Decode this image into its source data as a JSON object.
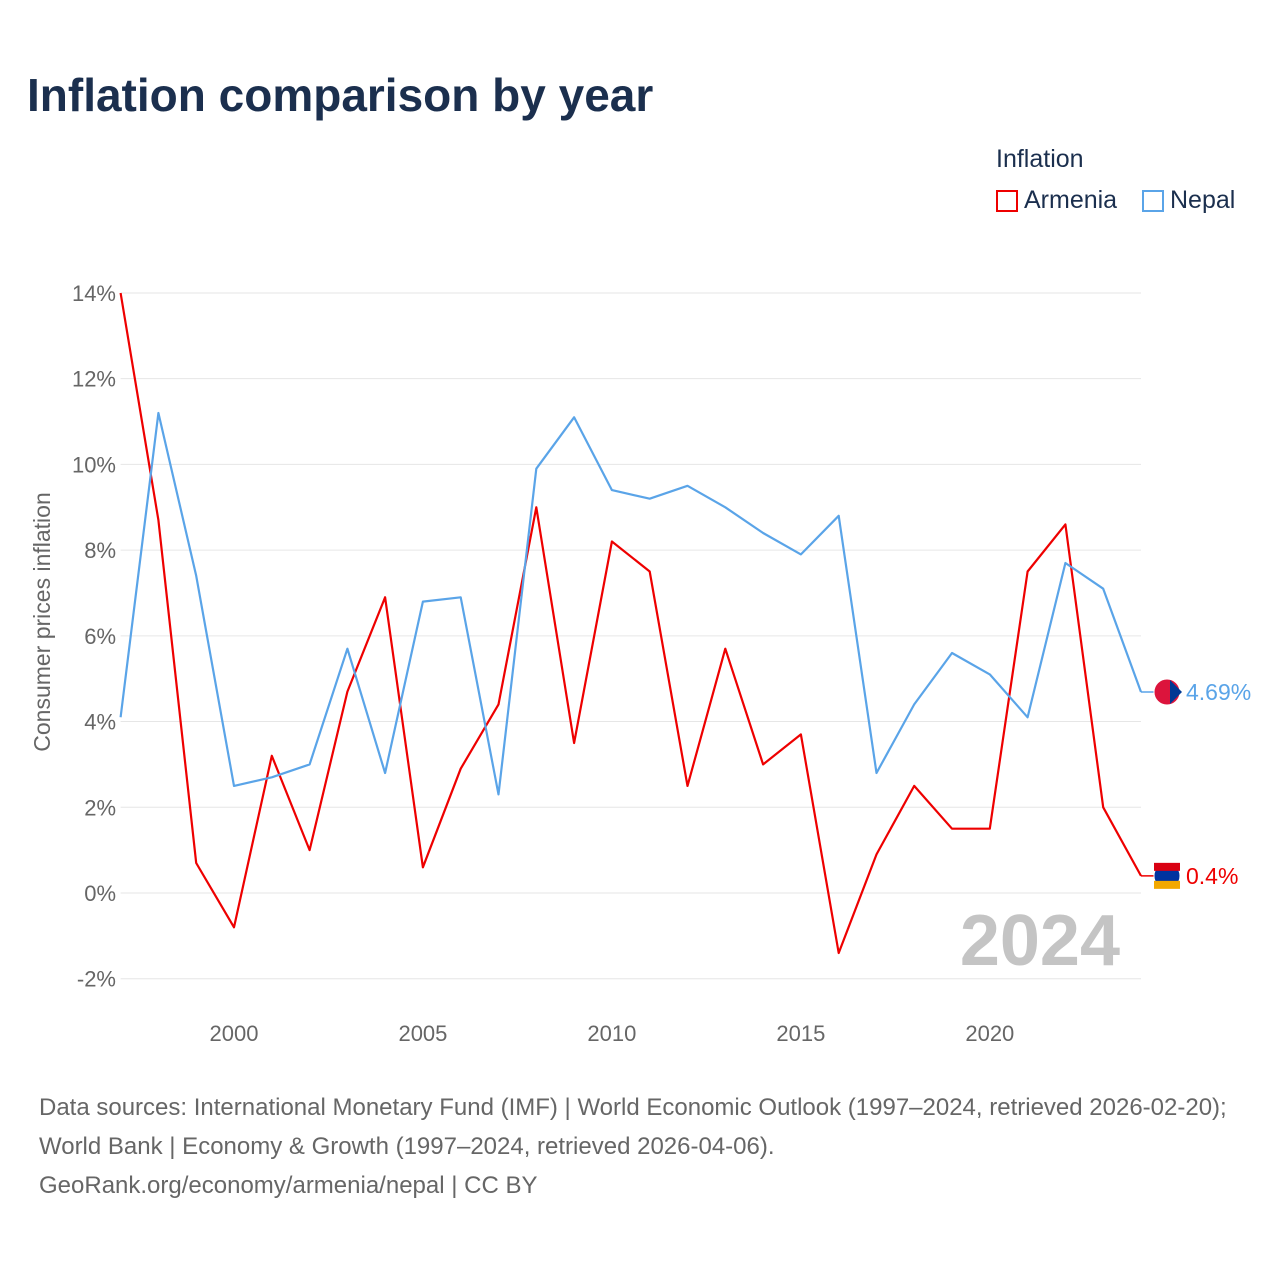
{
  "title": "Inflation comparison by year",
  "legend": {
    "title": "Inflation",
    "items": [
      {
        "label": "Armenia",
        "color": "#ee0000"
      },
      {
        "label": "Nepal",
        "color": "#5aa4e8"
      }
    ]
  },
  "watermark_year": "2024",
  "source_text": "Data sources: International Monetary Fund (IMF) | World Economic Outlook (1997–2024, retrieved 2026-02-20); World Bank | Economy & Growth (1997–2024, retrieved 2026-04-06).",
  "source_link": "GeoRank.org/economy/armenia/nepal | CC BY",
  "chart_data": {
    "type": "line",
    "title": "Inflation comparison by year",
    "xlabel": "",
    "ylabel": "Consumer prices inflation",
    "xlim": [
      1997,
      2024
    ],
    "ylim": [
      -2.5,
      14
    ],
    "yticks": [
      -2,
      0,
      2,
      4,
      6,
      8,
      10,
      12,
      14
    ],
    "ytick_labels": [
      "-2%",
      "0%",
      "2%",
      "4%",
      "6%",
      "8%",
      "10%",
      "12%",
      "14%"
    ],
    "xticks": [
      2000,
      2005,
      2010,
      2015,
      2020
    ],
    "xtick_labels": [
      "2000",
      "2005",
      "2010",
      "2015",
      "2020"
    ],
    "grid": true,
    "legend_position": "top-right",
    "x": [
      1997,
      1998,
      1999,
      2000,
      2001,
      2002,
      2003,
      2004,
      2005,
      2006,
      2007,
      2008,
      2009,
      2010,
      2011,
      2012,
      2013,
      2014,
      2015,
      2016,
      2017,
      2018,
      2019,
      2020,
      2021,
      2022,
      2023,
      2024
    ],
    "series": [
      {
        "name": "Armenia",
        "color": "#ee0000",
        "end_label": "0.4%",
        "values": [
          14.0,
          8.7,
          0.7,
          -0.8,
          3.2,
          1.0,
          4.7,
          6.9,
          0.6,
          2.9,
          4.4,
          9.0,
          3.5,
          8.2,
          7.5,
          2.5,
          5.7,
          3.0,
          3.7,
          -1.4,
          0.9,
          2.5,
          1.5,
          1.5,
          7.5,
          8.6,
          2.0,
          0.4
        ]
      },
      {
        "name": "Nepal",
        "color": "#5aa4e8",
        "end_label": "4.69%",
        "values": [
          4.1,
          11.2,
          7.4,
          2.5,
          2.7,
          3.0,
          5.7,
          2.8,
          6.8,
          6.9,
          2.3,
          9.9,
          11.1,
          9.4,
          9.2,
          9.5,
          9.0,
          8.4,
          7.9,
          8.8,
          2.8,
          4.4,
          5.6,
          5.1,
          4.1,
          7.7,
          7.1,
          4.69
        ]
      }
    ]
  }
}
